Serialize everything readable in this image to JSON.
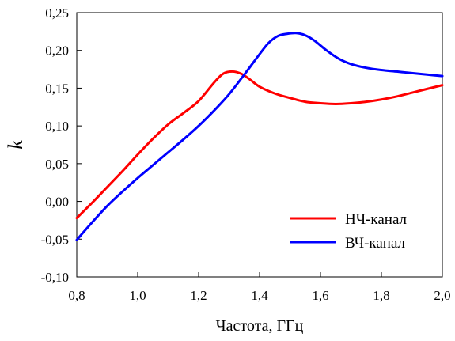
{
  "chart_data": {
    "type": "line",
    "title": "",
    "xlabel": "Частота, ГГц",
    "ylabel": "k",
    "xlim": [
      0.8,
      2.0
    ],
    "ylim": [
      -0.1,
      0.25
    ],
    "x_ticks": [
      0.8,
      1.0,
      1.2,
      1.4,
      1.6,
      1.8,
      2.0
    ],
    "x_tick_labels": [
      "0,8",
      "1,0",
      "1,2",
      "1,4",
      "1,6",
      "1,8",
      "2,0"
    ],
    "y_ticks": [
      -0.1,
      -0.05,
      0.0,
      0.05,
      0.1,
      0.15,
      0.2,
      0.25
    ],
    "y_tick_labels": [
      "-0,10",
      "-0,05",
      "0,00",
      "0,05",
      "0,10",
      "0,15",
      "0,20",
      "0,25"
    ],
    "grid": false,
    "legend_position": "bottom-right",
    "series": [
      {
        "name": "НЧ-канал",
        "color": "#ff0000",
        "x": [
          0.8,
          0.85,
          0.9,
          0.95,
          1.0,
          1.05,
          1.1,
          1.15,
          1.2,
          1.25,
          1.28,
          1.31,
          1.34,
          1.37,
          1.4,
          1.45,
          1.5,
          1.55,
          1.6,
          1.65,
          1.7,
          1.75,
          1.8,
          1.85,
          1.9,
          1.95,
          2.0
        ],
        "y": [
          -0.022,
          -0.002,
          0.019,
          0.04,
          0.062,
          0.083,
          0.102,
          0.117,
          0.133,
          0.157,
          0.169,
          0.172,
          0.169,
          0.161,
          0.152,
          0.143,
          0.137,
          0.132,
          0.13,
          0.129,
          0.13,
          0.132,
          0.135,
          0.139,
          0.144,
          0.149,
          0.154
        ]
      },
      {
        "name": "ВЧ-канал",
        "color": "#0000ff",
        "x": [
          0.8,
          0.85,
          0.9,
          0.95,
          1.0,
          1.05,
          1.1,
          1.15,
          1.2,
          1.25,
          1.3,
          1.35,
          1.4,
          1.43,
          1.46,
          1.49,
          1.52,
          1.55,
          1.58,
          1.62,
          1.66,
          1.7,
          1.75,
          1.8,
          1.85,
          1.9,
          1.95,
          2.0
        ],
        "y": [
          -0.051,
          -0.028,
          -0.006,
          0.013,
          0.031,
          0.048,
          0.065,
          0.082,
          0.1,
          0.12,
          0.142,
          0.168,
          0.195,
          0.21,
          0.219,
          0.222,
          0.223,
          0.22,
          0.213,
          0.2,
          0.189,
          0.182,
          0.177,
          0.174,
          0.172,
          0.17,
          0.168,
          0.166
        ]
      }
    ]
  }
}
